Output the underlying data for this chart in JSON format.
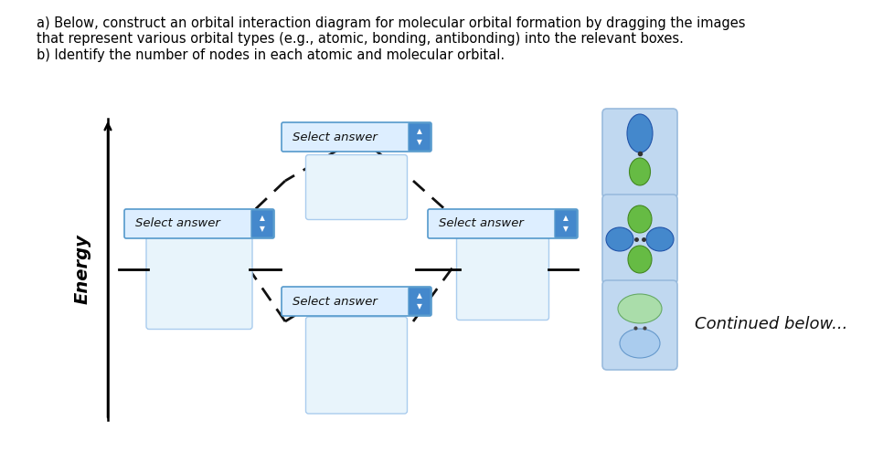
{
  "title_text": "a) Below, construct an orbital interaction diagram for molecular orbital formation by dragging the images\nthat represent various orbital types (e.g., atomic, bonding, antibonding) into the relevant boxes.\nb) Identify the number of nodes in each atomic and molecular orbital.",
  "title_fontsize": 10.5,
  "bg_color": "#ffffff",
  "dropdown_bg": "#ddeeff",
  "dropdown_border": "#5599cc",
  "dropdown_btn": "#4488cc",
  "dropdown_text": "Select answer",
  "dropdown_text_color": "#111111",
  "dropdown_fontsize": 9.5,
  "box_bg": "#e8f4fb",
  "box_border": "#aaccee",
  "dashed_color": "#111111",
  "tick_color": "#000000",
  "continued_text": "Continued below...",
  "continued_fontsize": 13,
  "energy_label": "Energy",
  "energy_fontsize": 14,
  "card_bg": "#c0d8f0",
  "card_border": "#99bbdd"
}
